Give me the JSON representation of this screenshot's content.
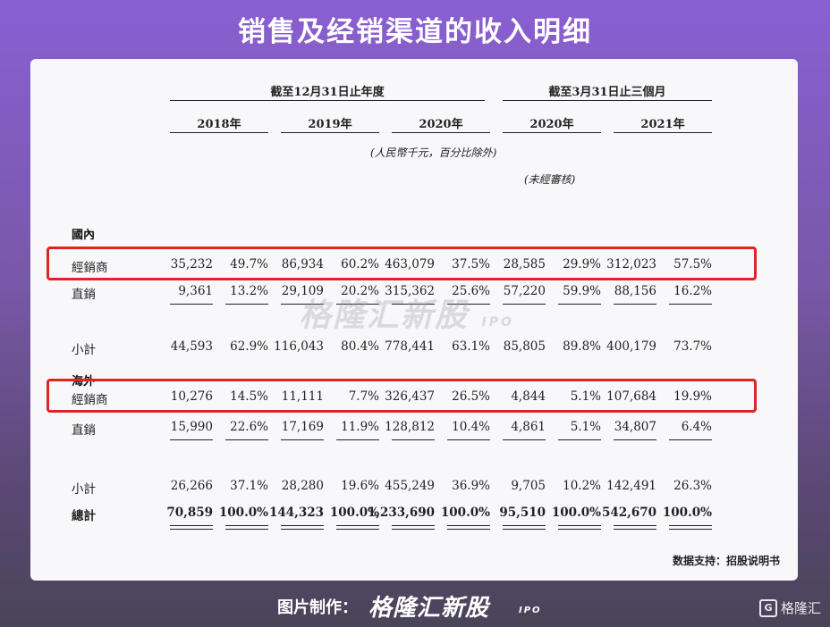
{
  "title": "销售及经销渠道的收入明细",
  "table": {
    "group_headers": [
      "截至12月31日止年度",
      "截至3月31日止三個月"
    ],
    "years": [
      "2018年",
      "2019年",
      "2020年",
      "2020年",
      "2021年"
    ],
    "unit_note": "(人民幣千元，百分比除外)",
    "unaudited_note": "(未經審核)",
    "sections": [
      {
        "name": "國內",
        "rows": [
          {
            "label": "經銷商",
            "values": [
              "35,232",
              "49.7%",
              "86,934",
              "60.2%",
              "463,079",
              "37.5%",
              "28,585",
              "29.9%",
              "312,023",
              "57.5%"
            ],
            "highlight": true
          },
          {
            "label": "直銷",
            "values": [
              "9,361",
              "13.2%",
              "29,109",
              "20.2%",
              "315,362",
              "25.6%",
              "57,220",
              "59.9%",
              "88,156",
              "16.2%"
            ]
          },
          {
            "label": "小計",
            "values": [
              "44,593",
              "62.9%",
              "116,043",
              "80.4%",
              "778,441",
              "63.1%",
              "85,805",
              "89.8%",
              "400,179",
              "73.7%"
            ]
          }
        ]
      },
      {
        "name": "海外",
        "rows": [
          {
            "label": "經銷商",
            "values": [
              "10,276",
              "14.5%",
              "11,111",
              "7.7%",
              "326,437",
              "26.5%",
              "4,844",
              "5.1%",
              "107,684",
              "19.9%"
            ],
            "highlight": true
          },
          {
            "label": "直銷",
            "values": [
              "15,990",
              "22.6%",
              "17,169",
              "11.9%",
              "128,812",
              "10.4%",
              "4,861",
              "5.1%",
              "34,807",
              "6.4%"
            ]
          },
          {
            "label": "小計",
            "values": [
              "26,266",
              "37.1%",
              "28,280",
              "19.6%",
              "455,249",
              "36.9%",
              "9,705",
              "10.2%",
              "142,491",
              "26.3%"
            ]
          }
        ]
      }
    ],
    "total": {
      "label": "總計",
      "values": [
        "70,859",
        "100.0%",
        "144,323",
        "100.0%",
        "1,233,690",
        "100.0%",
        "95,510",
        "100.0%",
        "542,670",
        "100.0%"
      ]
    }
  },
  "watermark": {
    "brand": "格隆汇新股",
    "sub": "IPO"
  },
  "source": "数据支持：招股说明书",
  "footer": {
    "made_by": "图片制作：",
    "brand": "格隆汇新股",
    "ipo": "IPO",
    "logo_text": "格隆汇",
    "logo_mark": "G"
  },
  "colors": {
    "highlight_box": "#e02424",
    "background_top": "#8a5fd3"
  }
}
